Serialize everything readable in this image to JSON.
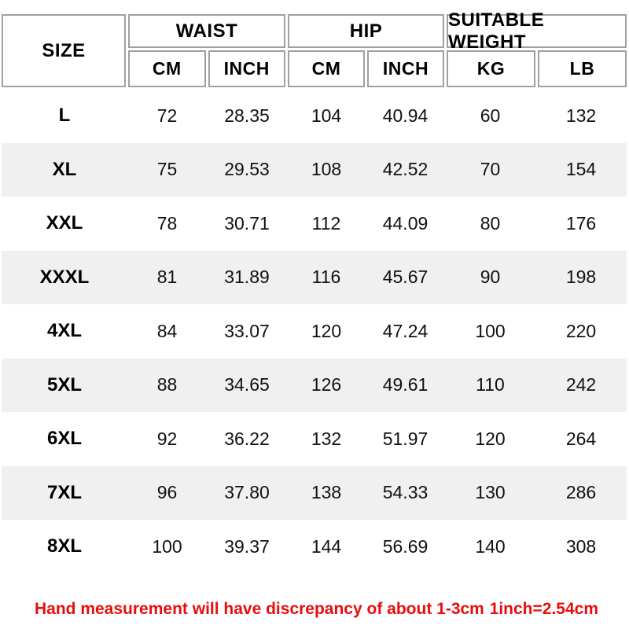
{
  "chart_data": {
    "type": "table",
    "header_groups": [
      {
        "label": "SIZE",
        "span": 1
      },
      {
        "label": "WAIST",
        "span": 2
      },
      {
        "label": "HIP",
        "span": 2
      },
      {
        "label": "SUITABLE WEIGHT",
        "span": 2
      }
    ],
    "sub_headers": [
      "CM",
      "INCH",
      "CM",
      "INCH",
      "KG",
      "LB"
    ],
    "columns": [
      "SIZE",
      "WAIST CM",
      "WAIST INCH",
      "HIP CM",
      "HIP INCH",
      "WEIGHT KG",
      "WEIGHT LB"
    ],
    "rows": [
      [
        "L",
        "72",
        "28.35",
        "104",
        "40.94",
        "60",
        "132"
      ],
      [
        "XL",
        "75",
        "29.53",
        "108",
        "42.52",
        "70",
        "154"
      ],
      [
        "XXL",
        "78",
        "30.71",
        "112",
        "44.09",
        "80",
        "176"
      ],
      [
        "XXXL",
        "81",
        "31.89",
        "116",
        "45.67",
        "90",
        "198"
      ],
      [
        "4XL",
        "84",
        "33.07",
        "120",
        "47.24",
        "100",
        "220"
      ],
      [
        "5XL",
        "88",
        "34.65",
        "126",
        "49.61",
        "110",
        "242"
      ],
      [
        "6XL",
        "92",
        "36.22",
        "132",
        "51.97",
        "120",
        "264"
      ],
      [
        "7XL",
        "96",
        "37.80",
        "138",
        "54.33",
        "130",
        "286"
      ],
      [
        "8XL",
        "100",
        "39.37",
        "144",
        "56.69",
        "140",
        "308"
      ]
    ],
    "notes": [
      "Hand measurement will have discrepancy of about 1-3cm",
      "1inch=2.54cm"
    ]
  },
  "footer": {
    "note_left": "Hand measurement will have discrepancy of about 1-3cm",
    "note_right": "1inch=2.54cm"
  },
  "colors": {
    "border": "#a0a0a0",
    "row_shade": "#f0f0f0",
    "note_red": "#e80d0d",
    "text": "#111111"
  }
}
